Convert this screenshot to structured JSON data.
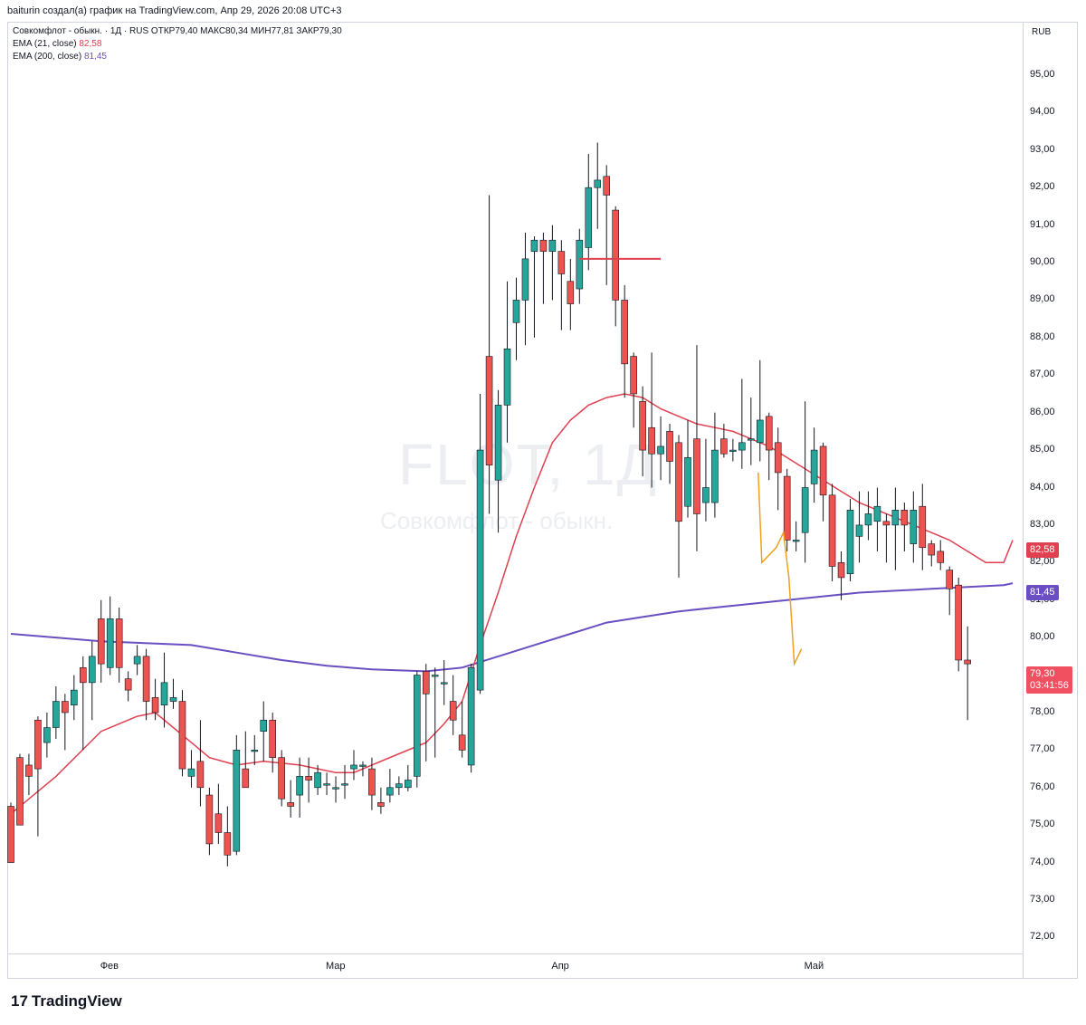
{
  "header": {
    "text": "baiturin создал(а) график на TradingView.com, Апр 29, 2026 20:08 UTC+3"
  },
  "legend": {
    "symbol_line": "Совкомфлот - обыкн. · 1Д · RUS  ОТКР79,40  МАКС80,34  МИН77,81  ЗАКР79,30",
    "ema21_label": "EMA (21, close)",
    "ema21_value": "82,58",
    "ema200_label": "EMA (200, close)",
    "ema200_value": "81,45"
  },
  "currency": "RUB",
  "watermark": {
    "ticker": "FLOT, 1Д",
    "name": "Совкомфлот - обыкн."
  },
  "badges": {
    "ema21": "82,58",
    "ema200": "81,45",
    "close": "79,30",
    "countdown": "03:41:56"
  },
  "footer": {
    "logo_text": "TradingView"
  },
  "colors": {
    "up": "#26a69a",
    "down": "#ef5350",
    "ema21": "#e04050",
    "ema200": "#6b4fc2",
    "hline": "#e04050",
    "triangle": "#f0a020"
  },
  "chart_data": {
    "type": "candlestick",
    "y_ticks": [
      "72,00",
      "73,00",
      "74,00",
      "75,00",
      "76,00",
      "77,00",
      "78,00",
      "79,00",
      "80,00",
      "81,00",
      "82,00",
      "83,00",
      "84,00",
      "85,00",
      "86,00",
      "87,00",
      "88,00",
      "89,00",
      "90,00",
      "91,00",
      "92,00",
      "93,00",
      "94,00",
      "95,00"
    ],
    "y_tick_values": [
      72,
      73,
      74,
      75,
      76,
      77,
      78,
      79,
      80,
      81,
      82,
      83,
      84,
      85,
      86,
      87,
      88,
      89,
      90,
      91,
      92,
      93,
      94,
      95
    ],
    "x_ticks": [
      {
        "label": "Фев",
        "index": 11
      },
      {
        "label": "Мар",
        "index": 36
      },
      {
        "label": "Апр",
        "index": 61
      },
      {
        "label": "Май",
        "index": 89
      }
    ],
    "ylim": [
      71.6,
      96.4
    ],
    "xlim": [
      -0.3,
      112
    ],
    "hline": {
      "value": 90.1,
      "from_index": 63,
      "to_index": 72
    },
    "triangle_overlays": [
      [
        [
          82.8,
          84.4
        ],
        [
          83.2,
          82.0
        ],
        [
          84.8,
          82.4
        ],
        [
          85.6,
          82.8
        ],
        [
          86.2,
          81.6
        ],
        [
          86.8,
          79.3
        ],
        [
          87.6,
          79.7
        ]
      ]
    ],
    "candles": [
      [
        75.5,
        74.0,
        75.6,
        74.3
      ],
      [
        76.8,
        75.0,
        76.9,
        75.5
      ],
      [
        76.6,
        76.3,
        76.9,
        75.8
      ],
      [
        77.8,
        76.5,
        77.9,
        74.7
      ],
      [
        77.2,
        77.6,
        78.0,
        76.8
      ],
      [
        77.6,
        78.3,
        78.7,
        77.3
      ],
      [
        78.3,
        78.0,
        78.5,
        77.0
      ],
      [
        78.2,
        78.6,
        79.0,
        77.8
      ],
      [
        79.2,
        78.8,
        79.5,
        77.0
      ],
      [
        78.8,
        79.5,
        79.9,
        77.8
      ],
      [
        80.5,
        79.3,
        81.0,
        78.8
      ],
      [
        79.2,
        80.5,
        81.1,
        79.0
      ],
      [
        80.5,
        79.2,
        80.8,
        78.8
      ],
      [
        78.9,
        78.6,
        79.1,
        78.3
      ],
      [
        79.3,
        79.5,
        79.8,
        79.0
      ],
      [
        79.5,
        78.3,
        79.7,
        77.8
      ],
      [
        78.4,
        78.0,
        78.9,
        77.8
      ],
      [
        78.2,
        78.8,
        79.6,
        77.6
      ],
      [
        78.3,
        78.4,
        78.9,
        78.1
      ],
      [
        78.3,
        76.5,
        78.6,
        76.3
      ],
      [
        76.3,
        76.5,
        77.0,
        76.0
      ],
      [
        76.7,
        76.0,
        77.8,
        75.5
      ],
      [
        75.8,
        74.5,
        76.0,
        74.2
      ],
      [
        75.3,
        74.8,
        76.1,
        74.5
      ],
      [
        74.8,
        74.2,
        75.5,
        73.9
      ],
      [
        74.3,
        77.0,
        77.4,
        74.2
      ],
      [
        76.5,
        76.0,
        77.5,
        76.2
      ],
      [
        77.0,
        77.0,
        77.4,
        76.6
      ],
      [
        77.5,
        77.8,
        78.3,
        76.7
      ],
      [
        77.8,
        76.8,
        78.0,
        76.4
      ],
      [
        76.8,
        75.7,
        77.0,
        75.5
      ],
      [
        75.6,
        75.5,
        76.2,
        75.2
      ],
      [
        75.8,
        76.3,
        76.8,
        75.2
      ],
      [
        76.3,
        76.2,
        76.8,
        75.6
      ],
      [
        76.0,
        76.4,
        76.6,
        75.8
      ],
      [
        76.1,
        76.1,
        76.4,
        75.8
      ],
      [
        76.0,
        76.0,
        76.3,
        75.6
      ],
      [
        76.1,
        76.1,
        76.6,
        75.7
      ],
      [
        76.5,
        76.6,
        77.0,
        76.2
      ],
      [
        76.6,
        76.6,
        76.7,
        76.3
      ],
      [
        76.5,
        75.8,
        76.8,
        75.4
      ],
      [
        75.6,
        75.5,
        76.0,
        75.3
      ],
      [
        75.8,
        76.0,
        76.5,
        75.6
      ],
      [
        76.0,
        76.1,
        76.3,
        75.8
      ],
      [
        76.0,
        76.2,
        76.6,
        75.9
      ],
      [
        76.3,
        79.0,
        79.1,
        76.0
      ],
      [
        79.1,
        78.5,
        79.3,
        76.7
      ],
      [
        79.0,
        79.0,
        79.2,
        76.8
      ],
      [
        78.8,
        78.8,
        79.4,
        78.2
      ],
      [
        78.3,
        77.8,
        79.0,
        77.4
      ],
      [
        77.4,
        77.0,
        78.3,
        76.8
      ],
      [
        76.6,
        79.2,
        79.3,
        76.4
      ],
      [
        78.6,
        85.0,
        86.5,
        78.5
      ],
      [
        87.5,
        84.6,
        91.8,
        83.3
      ],
      [
        84.2,
        86.2,
        86.6,
        82.8
      ],
      [
        86.2,
        87.7,
        89.5,
        85.2
      ],
      [
        88.4,
        89.0,
        89.6,
        87.4
      ],
      [
        89.0,
        90.1,
        90.8,
        87.8
      ],
      [
        90.3,
        90.6,
        90.7,
        88.0
      ],
      [
        90.6,
        90.3,
        90.8,
        88.9
      ],
      [
        90.3,
        90.6,
        91.0,
        89.0
      ],
      [
        90.3,
        89.7,
        90.6,
        88.2
      ],
      [
        89.5,
        88.9,
        90.1,
        88.2
      ],
      [
        89.3,
        90.6,
        90.9,
        88.9
      ],
      [
        90.4,
        92.0,
        92.9,
        89.8
      ],
      [
        92.0,
        92.2,
        93.2,
        90.9
      ],
      [
        92.3,
        91.8,
        92.6,
        89.4
      ],
      [
        91.4,
        89.0,
        91.5,
        88.3
      ],
      [
        89.0,
        87.3,
        89.4,
        86.4
      ],
      [
        87.5,
        86.5,
        87.6,
        85.6
      ],
      [
        86.3,
        85.0,
        86.7,
        84.3
      ],
      [
        85.6,
        84.9,
        87.6,
        84.0
      ],
      [
        84.9,
        85.1,
        85.9,
        84.2
      ],
      [
        85.5,
        84.7,
        85.7,
        84.1
      ],
      [
        85.2,
        83.1,
        85.4,
        81.6
      ],
      [
        83.5,
        84.8,
        85.8,
        83.2
      ],
      [
        85.3,
        83.3,
        87.8,
        82.3
      ],
      [
        83.6,
        84.0,
        85.3,
        83.1
      ],
      [
        83.6,
        85.0,
        86.0,
        83.2
      ],
      [
        85.3,
        84.9,
        85.7,
        84.8
      ],
      [
        85.0,
        85.0,
        85.3,
        84.7
      ],
      [
        85.0,
        85.2,
        86.9,
        84.5
      ],
      [
        85.3,
        85.3,
        86.4,
        84.6
      ],
      [
        85.2,
        85.8,
        87.4,
        84.7
      ],
      [
        85.9,
        85.0,
        86.0,
        84.2
      ],
      [
        85.2,
        84.4,
        85.6,
        83.4
      ],
      [
        84.3,
        82.6,
        84.5,
        82.3
      ],
      [
        82.6,
        82.6,
        83.1,
        82.3
      ],
      [
        82.8,
        84.0,
        86.3,
        82.0
      ],
      [
        84.1,
        85.0,
        85.6,
        83.6
      ],
      [
        85.1,
        83.8,
        85.2,
        83.1
      ],
      [
        83.8,
        81.9,
        84.1,
        81.5
      ],
      [
        82.0,
        81.6,
        82.3,
        81.0
      ],
      [
        81.7,
        83.4,
        83.7,
        81.5
      ],
      [
        82.7,
        83.0,
        83.9,
        82.0
      ],
      [
        83.0,
        83.3,
        83.9,
        82.6
      ],
      [
        83.1,
        83.5,
        84.0,
        82.3
      ],
      [
        83.1,
        83.0,
        83.3,
        82.0
      ],
      [
        83.0,
        83.4,
        84.0,
        81.8
      ],
      [
        83.4,
        83.0,
        83.6,
        82.3
      ],
      [
        82.5,
        83.4,
        83.9,
        82.0
      ],
      [
        83.5,
        82.4,
        84.1,
        81.8
      ],
      [
        82.5,
        82.2,
        82.6,
        81.9
      ],
      [
        82.3,
        82.0,
        82.6,
        81.8
      ],
      [
        81.8,
        81.3,
        81.9,
        80.6
      ],
      [
        81.4,
        79.4,
        81.6,
        79.1
      ],
      [
        79.4,
        79.3,
        80.3,
        77.8
      ]
    ],
    "ema21": [
      [
        0,
        75.3
      ],
      [
        5,
        76.3
      ],
      [
        10,
        77.5
      ],
      [
        14,
        77.9
      ],
      [
        16,
        78.0
      ],
      [
        18,
        77.6
      ],
      [
        20,
        77.2
      ],
      [
        22,
        76.8
      ],
      [
        25,
        76.6
      ],
      [
        28,
        76.7
      ],
      [
        32,
        76.6
      ],
      [
        36,
        76.4
      ],
      [
        38,
        76.4
      ],
      [
        40,
        76.6
      ],
      [
        43,
        76.9
      ],
      [
        46,
        77.2
      ],
      [
        48,
        77.7
      ],
      [
        50,
        78.3
      ],
      [
        52,
        79.8
      ],
      [
        54,
        81.2
      ],
      [
        56,
        82.7
      ],
      [
        58,
        84.0
      ],
      [
        60,
        85.2
      ],
      [
        62,
        85.8
      ],
      [
        64,
        86.2
      ],
      [
        66,
        86.4
      ],
      [
        68,
        86.5
      ],
      [
        70,
        86.4
      ],
      [
        72,
        86.1
      ],
      [
        74,
        85.9
      ],
      [
        76,
        85.7
      ],
      [
        78,
        85.6
      ],
      [
        80,
        85.5
      ],
      [
        82,
        85.3
      ],
      [
        84,
        85.1
      ],
      [
        86,
        84.8
      ],
      [
        88,
        84.5
      ],
      [
        90,
        84.2
      ],
      [
        92,
        83.9
      ],
      [
        94,
        83.6
      ],
      [
        96,
        83.4
      ],
      [
        98,
        83.2
      ],
      [
        100,
        83.0
      ],
      [
        102,
        82.8
      ],
      [
        104,
        82.6
      ],
      [
        106,
        82.3
      ],
      [
        108,
        82.0
      ],
      [
        110,
        82.0
      ],
      [
        111,
        82.6
      ]
    ],
    "ema200": [
      [
        0,
        80.1
      ],
      [
        10,
        79.9
      ],
      [
        20,
        79.8
      ],
      [
        25,
        79.6
      ],
      [
        30,
        79.4
      ],
      [
        35,
        79.25
      ],
      [
        40,
        79.15
      ],
      [
        46,
        79.1
      ],
      [
        50,
        79.2
      ],
      [
        54,
        79.5
      ],
      [
        58,
        79.8
      ],
      [
        62,
        80.1
      ],
      [
        66,
        80.4
      ],
      [
        70,
        80.55
      ],
      [
        74,
        80.7
      ],
      [
        78,
        80.8
      ],
      [
        82,
        80.9
      ],
      [
        86,
        81.0
      ],
      [
        90,
        81.1
      ],
      [
        94,
        81.2
      ],
      [
        98,
        81.25
      ],
      [
        102,
        81.3
      ],
      [
        106,
        81.35
      ],
      [
        110,
        81.4
      ],
      [
        111,
        81.45
      ]
    ]
  }
}
